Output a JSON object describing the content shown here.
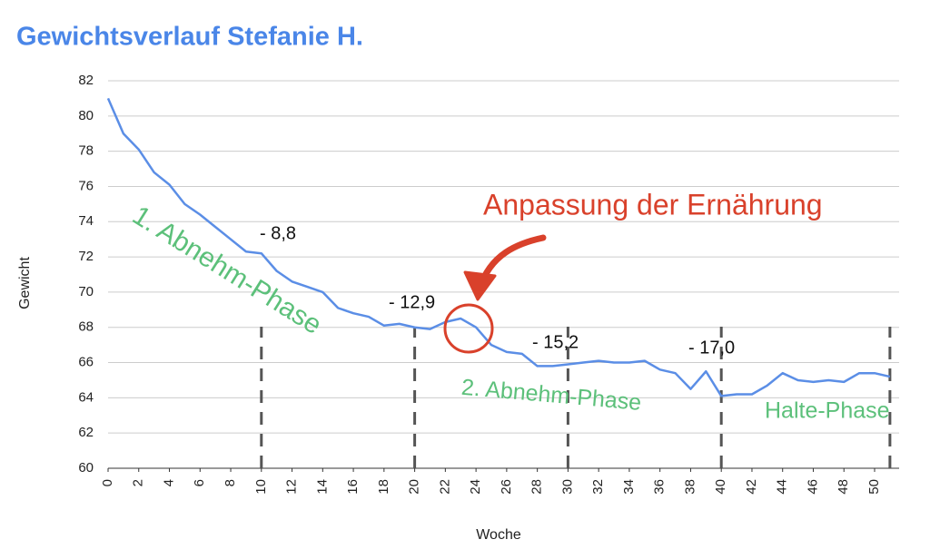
{
  "chart_data": {
    "type": "line",
    "title": "Gewichtsverlauf Stefanie H.",
    "x_label": "Woche",
    "y_label": "Gewicht",
    "x": [
      0,
      1,
      2,
      3,
      4,
      5,
      6,
      7,
      8,
      9,
      10,
      11,
      12,
      13,
      14,
      15,
      16,
      17,
      18,
      19,
      20,
      21,
      22,
      23,
      24,
      25,
      26,
      27,
      28,
      29,
      30,
      31,
      32,
      33,
      34,
      35,
      36,
      37,
      38,
      39,
      40,
      41,
      42,
      43,
      44,
      45,
      46,
      47,
      48,
      49,
      50,
      51
    ],
    "series": [
      {
        "name": "Gewicht",
        "color": "#5b8ee6",
        "values": [
          81.0,
          79.0,
          78.1,
          76.8,
          76.1,
          75.0,
          74.4,
          73.7,
          73.0,
          72.3,
          72.2,
          71.2,
          70.6,
          70.3,
          70.0,
          69.1,
          68.8,
          68.6,
          68.1,
          68.2,
          68.0,
          67.9,
          68.3,
          68.5,
          68.0,
          67.0,
          66.6,
          66.5,
          65.8,
          65.8,
          65.9,
          66.0,
          66.1,
          66.0,
          66.0,
          66.1,
          65.6,
          65.4,
          64.5,
          65.5,
          64.1,
          64.2,
          64.2,
          64.7,
          65.4,
          65.0,
          64.9,
          65.0,
          64.9,
          65.4,
          65.4,
          65.2
        ]
      }
    ],
    "xlim": [
      0,
      51.6
    ],
    "xticks": [
      0,
      2,
      4,
      6,
      8,
      10,
      12,
      14,
      16,
      18,
      20,
      22,
      24,
      26,
      28,
      30,
      32,
      34,
      36,
      38,
      40,
      42,
      44,
      46,
      48,
      50
    ],
    "ylim": [
      60,
      82
    ],
    "yticks": [
      60,
      62,
      64,
      66,
      68,
      70,
      72,
      74,
      76,
      78,
      80,
      82
    ],
    "grid": true,
    "phase_markers": [
      10,
      20,
      30,
      40,
      51
    ],
    "annotations": [
      "- 8,8",
      "- 12,9",
      "- 15,2",
      "- 17,0",
      "Anpassung der Ernährung",
      "1. Abnehm-Phase",
      "2. Abnehm-Phase",
      "Halte-Phase"
    ]
  }
}
